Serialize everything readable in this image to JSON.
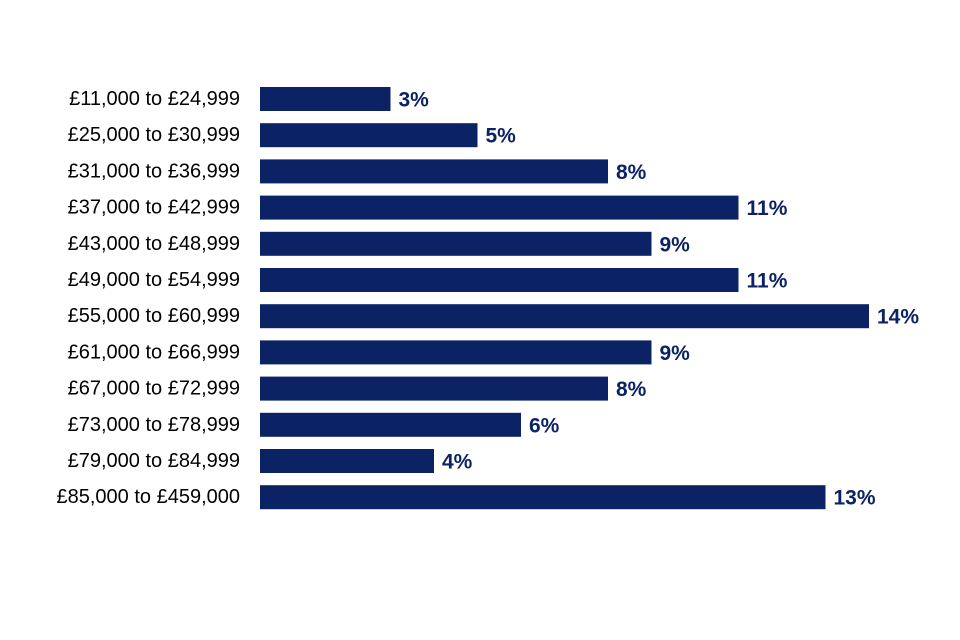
{
  "chart_data": {
    "type": "bar",
    "orientation": "horizontal",
    "categories": [
      "£11,000 to £24,999",
      "£25,000 to £30,999",
      "£31,000 to £36,999",
      "£37,000 to £42,999",
      "£43,000 to £48,999",
      "£49,000 to £54,999",
      "£55,000 to £60,999",
      "£61,000 to £66,999",
      "£67,000 to £72,999",
      "£73,000 to £78,999",
      "£79,000 to £84,999",
      "£85,000 to £459,000"
    ],
    "values": [
      3,
      5,
      8,
      11,
      9,
      11,
      14,
      9,
      8,
      6,
      4,
      13
    ],
    "value_labels": [
      "3%",
      "5%",
      "8%",
      "11%",
      "9%",
      "11%",
      "14%",
      "9%",
      "8%",
      "6%",
      "4%",
      "13%"
    ],
    "unit": "%",
    "xlim": [
      0,
      14
    ],
    "grid": false,
    "bar_color": "#0b2265",
    "label_color": "#0b2265"
  }
}
